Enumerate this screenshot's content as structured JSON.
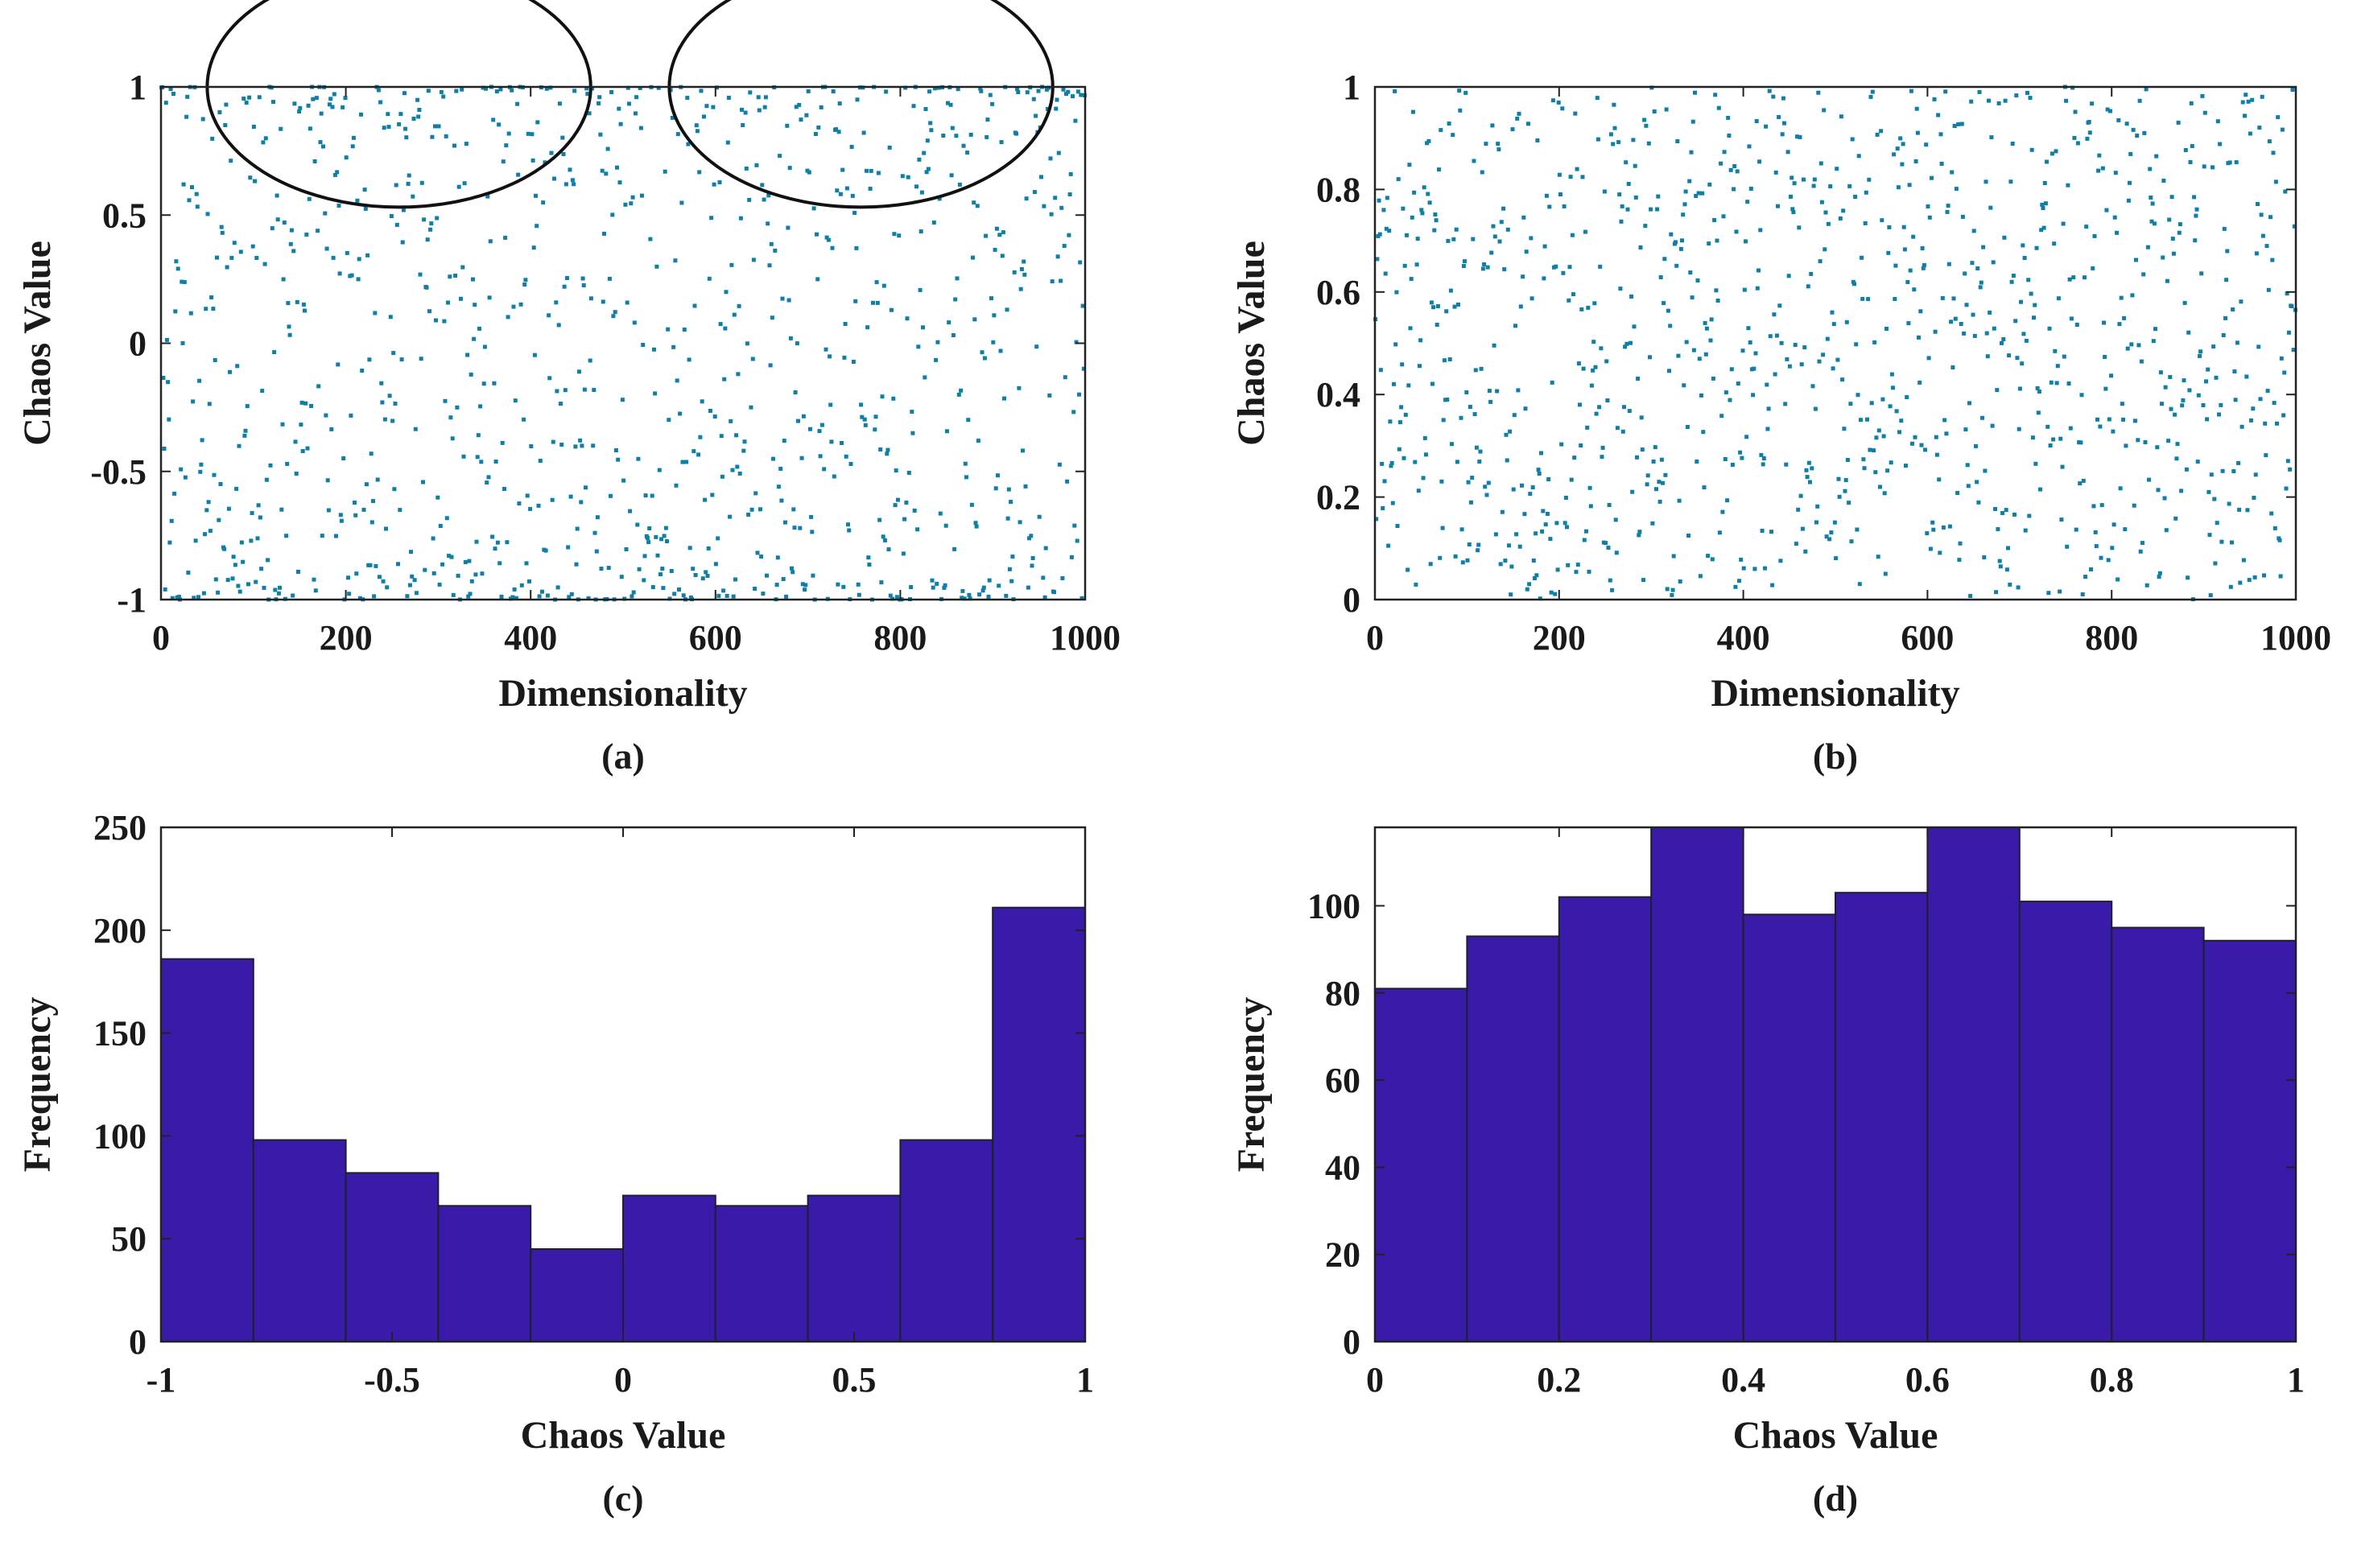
{
  "colors": {
    "scatter": "#0e7fa6",
    "bar_fill": "#3a1aa8",
    "bar_edge": "#1f1f2e",
    "axis": "#222222",
    "ellipse": "#111111"
  },
  "chart_data": [
    {
      "id": "a",
      "type": "scatter",
      "panel_label": "(a)",
      "xlabel": "Dimensionality",
      "ylabel": "Chaos Value",
      "xlim": [
        0,
        1000
      ],
      "ylim": [
        -1,
        1
      ],
      "xticks": [
        "0",
        "200",
        "400",
        "600",
        "800",
        "1000"
      ],
      "yticks": [
        "1",
        "0.5",
        "0",
        "-0.5",
        "-1"
      ],
      "grid": false,
      "n_points": 1000,
      "distribution": "chaotic values concentrated near -1 and 1 (U-shaped)",
      "highlights": [
        {
          "shape": "ellipse",
          "x_range": [
            50,
            465
          ],
          "y_range": [
            0.75,
            1.0
          ]
        },
        {
          "shape": "ellipse",
          "x_range": [
            550,
            965
          ],
          "y_range": [
            0.75,
            1.0
          ]
        }
      ]
    },
    {
      "id": "b",
      "type": "scatter",
      "panel_label": "(b)",
      "xlabel": "Dimensionality",
      "ylabel": "Chaos Value",
      "xlim": [
        0,
        1000
      ],
      "ylim": [
        0,
        1
      ],
      "xticks": [
        "0",
        "200",
        "400",
        "600",
        "800",
        "1000"
      ],
      "yticks": [
        "1",
        "0.8",
        "0.6",
        "0.4",
        "0.2",
        "0"
      ],
      "grid": false,
      "n_points": 1000,
      "distribution": "approximately uniform on [0, 1]"
    },
    {
      "id": "c",
      "type": "bar",
      "panel_label": "(c)",
      "xlabel": "Chaos Value",
      "ylabel": "Frequency",
      "xlim": [
        -1,
        1
      ],
      "ylim": [
        0,
        250
      ],
      "xticks": [
        "-1",
        "-0.5",
        "0",
        "0.5",
        "1"
      ],
      "yticks": [
        "250",
        "200",
        "150",
        "100",
        "50",
        "0"
      ],
      "bin_edges": [
        -1,
        -0.8,
        -0.6,
        -0.4,
        -0.2,
        0,
        0.2,
        0.4,
        0.6,
        0.8,
        1
      ],
      "values": [
        186,
        98,
        82,
        66,
        45,
        71,
        66,
        71,
        98,
        211
      ]
    },
    {
      "id": "d",
      "type": "bar",
      "panel_label": "(d)",
      "xlabel": "Chaos Value",
      "ylabel": "Frequency",
      "xlim": [
        0,
        1
      ],
      "ylim": [
        0,
        118
      ],
      "xticks": [
        "0",
        "0.2",
        "0.4",
        "0.6",
        "0.8",
        "1"
      ],
      "yticks": [
        "100",
        "80",
        "60",
        "40",
        "20",
        "0"
      ],
      "bin_edges": [
        0,
        0.1,
        0.2,
        0.3,
        0.4,
        0.5,
        0.6,
        0.7,
        0.8,
        0.9,
        1
      ],
      "values": [
        81,
        93,
        102,
        118,
        98,
        103,
        118,
        101,
        95,
        92
      ]
    }
  ]
}
